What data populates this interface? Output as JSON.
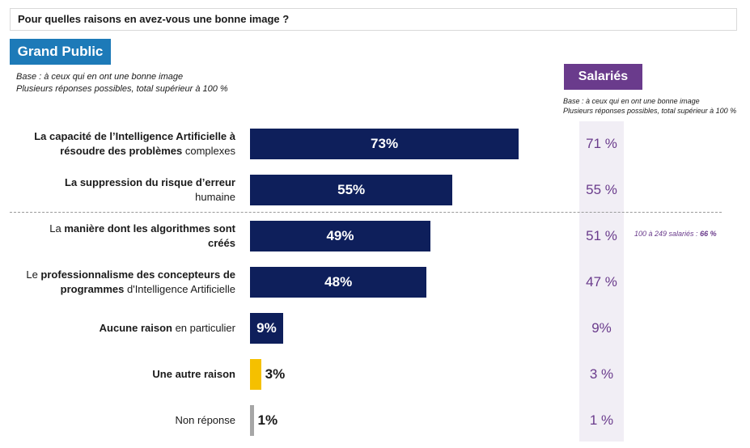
{
  "question": "Pour quelles raisons en avez-vous une bonne image ?",
  "grand_public": {
    "badge": "Grand Public",
    "base_line1": "Base : à ceux qui en ont une bonne image",
    "base_line2": "Plusieurs réponses possibles, total supérieur à 100 %"
  },
  "salaries": {
    "badge": "Salariés",
    "base_line1": "Base : à ceux qui en ont une bonne image",
    "base_line2": "Plusieurs réponses possibles, total supérieur à 100 %",
    "note_prefix": "100 à 249 salariés : ",
    "note_value": "66 %"
  },
  "colors": {
    "bar_main": "#0e1f5b",
    "bar_other": "#f5c000",
    "bar_noresponse": "#a6a6a6",
    "salaries": "#6a3b8c",
    "grand_public": "#1d7ab8"
  },
  "chart_data": {
    "type": "bar",
    "orientation": "horizontal",
    "categories": [
      "La capacité de l’Intelligence Artificielle à résoudre des problèmes complexes",
      "La suppression du risque d’erreur humaine",
      "La manière dont les algorithmes sont créés",
      "Le professionnalisme des concepteurs de programmes d'Intelligence Artificielle",
      "Aucune raison en particulier",
      "Une autre raison",
      "Non réponse"
    ],
    "series": [
      {
        "name": "Grand Public",
        "values": [
          73,
          55,
          49,
          48,
          9,
          3,
          1
        ]
      },
      {
        "name": "Salariés",
        "values": [
          71,
          55,
          51,
          47,
          9,
          3,
          1
        ]
      }
    ],
    "grand_public_labels": [
      "73%",
      "55%",
      "49%",
      "48%",
      "9%",
      "3%",
      "1%"
    ],
    "salaries_labels": [
      "71 %",
      "55 %",
      "51 %",
      "47 %",
      "9%",
      "3 %",
      "1 %"
    ],
    "xlim": [
      0,
      100
    ]
  }
}
